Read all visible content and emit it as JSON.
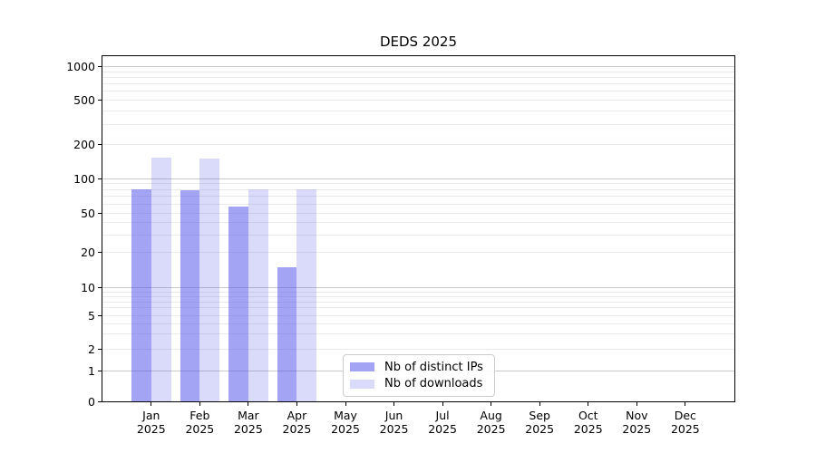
{
  "title": "DEDS 2025",
  "chart_data": {
    "type": "bar",
    "title": "DEDS 2025",
    "x_year": "2025",
    "months": [
      "Jan",
      "Feb",
      "Mar",
      "Apr",
      "May",
      "Jun",
      "Jul",
      "Aug",
      "Sep",
      "Oct",
      "Nov",
      "Dec"
    ],
    "series": [
      {
        "name": "Nb of distinct IPs",
        "color": "rgba(80,80,235,0.52)",
        "values": [
          81,
          79,
          57,
          15,
          0,
          0,
          0,
          0,
          0,
          0,
          0,
          0
        ]
      },
      {
        "name": "Nb of downloads",
        "color": "rgba(80,80,235,0.21)",
        "values": [
          153,
          150,
          80,
          80,
          0,
          0,
          0,
          0,
          0,
          0,
          0,
          0
        ]
      }
    ],
    "y_scale": "symlog (linear 0-1, logarithmic above)",
    "y_ticks": [
      0,
      1,
      2,
      5,
      10,
      20,
      50,
      100,
      200,
      500,
      1000
    ],
    "ylim": [
      0,
      1260
    ],
    "grid": {
      "horizontal": true,
      "vertical": false,
      "minor_log_lines": true
    },
    "legend_position": "inside plot, lower center-left"
  },
  "colors": {
    "bar_distinct_ips": "rgba(80,80,235,0.52)",
    "bar_downloads": "rgba(80,80,235,0.21)",
    "grid_major": "#c9c9c9",
    "grid_minor": "#eaeaea",
    "axis": "#000000",
    "background": "#ffffff"
  }
}
